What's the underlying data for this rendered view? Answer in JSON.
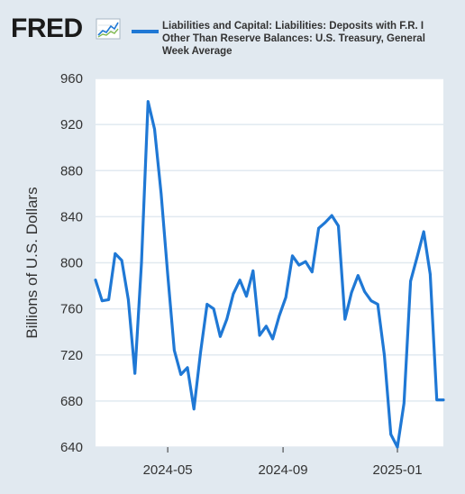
{
  "brand": {
    "logo_text": "FRED",
    "logo_icon": "chart-line-icon"
  },
  "legend": {
    "color": "#1f78d5",
    "text": "Liabilities and Capital: Liabilities: Deposits with F.R. I\nOther Than Reserve Balances: U.S. Treasury, General\nWeek Average"
  },
  "chart_data": {
    "type": "line",
    "title": "",
    "xlabel": "",
    "ylabel": "Billions of U.S. Dollars",
    "ylim": [
      640,
      960
    ],
    "yticks": [
      640,
      680,
      720,
      760,
      800,
      840,
      880,
      920,
      960
    ],
    "xtick_labels": [
      "2024-05",
      "2024-09",
      "2025-01"
    ],
    "xtick_dates": [
      "2024-05-01",
      "2024-09-01",
      "2025-01-01"
    ],
    "xlim": [
      "2024-02-14",
      "2025-02-19"
    ],
    "grid": true,
    "line_color": "#1f78d5",
    "plot_background": "#ffffff",
    "series": [
      {
        "name": "",
        "x": [
          "2024-02-14",
          "2024-02-21",
          "2024-02-28",
          "2024-03-06",
          "2024-03-13",
          "2024-03-20",
          "2024-03-27",
          "2024-04-03",
          "2024-04-10",
          "2024-04-17",
          "2024-04-24",
          "2024-05-01",
          "2024-05-08",
          "2024-05-15",
          "2024-05-22",
          "2024-05-29",
          "2024-06-05",
          "2024-06-12",
          "2024-06-19",
          "2024-06-26",
          "2024-07-03",
          "2024-07-10",
          "2024-07-17",
          "2024-07-24",
          "2024-07-31",
          "2024-08-07",
          "2024-08-14",
          "2024-08-21",
          "2024-08-28",
          "2024-09-04",
          "2024-09-11",
          "2024-09-18",
          "2024-09-25",
          "2024-10-02",
          "2024-10-09",
          "2024-10-16",
          "2024-10-23",
          "2024-10-30",
          "2024-11-06",
          "2024-11-13",
          "2024-11-20",
          "2024-11-27",
          "2024-12-04",
          "2024-12-11",
          "2024-12-18",
          "2024-12-25",
          "2025-01-01",
          "2025-01-08",
          "2025-01-15",
          "2025-01-22",
          "2025-01-29",
          "2025-02-05",
          "2025-02-12",
          "2025-02-19"
        ],
        "y": [
          785,
          767,
          768,
          808,
          802,
          768,
          704,
          800,
          940,
          916,
          860,
          790,
          724,
          703,
          709,
          673,
          722,
          764,
          760,
          736,
          751,
          773,
          785,
          771,
          793,
          737,
          745,
          734,
          754,
          770,
          806,
          798,
          801,
          792,
          830,
          835,
          841,
          832,
          751,
          774,
          789,
          775,
          767,
          764,
          720,
          651,
          640,
          678,
          784,
          805,
          827,
          790,
          681,
          681
        ]
      }
    ]
  }
}
